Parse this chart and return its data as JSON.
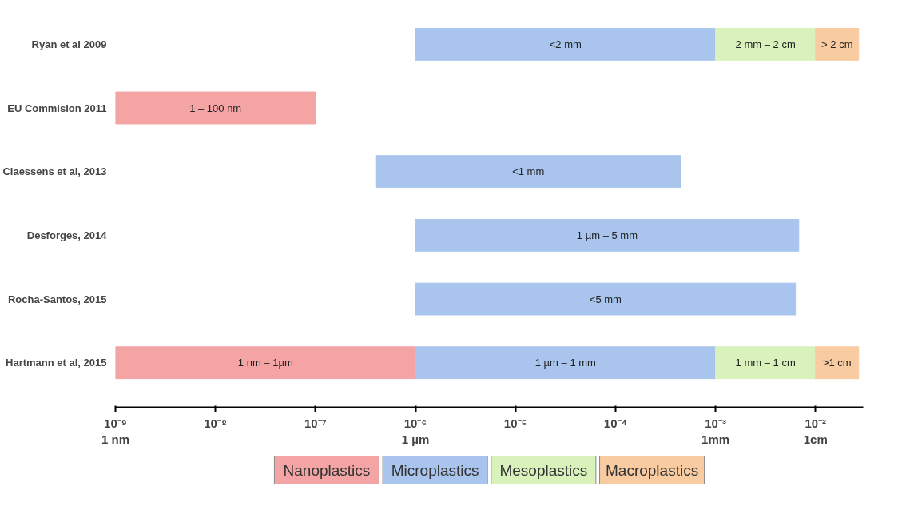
{
  "chart_data": {
    "type": "bar",
    "orientation": "horizontal",
    "log": "x",
    "legend": "bottom",
    "grid": false,
    "categories": [
      "Ryan et al 2009",
      "EU Commision 2011",
      "Claessens et al, 2013",
      "Desforges, 2014",
      "Rocha-Santos, 2015",
      "Hartmann et al, 2015"
    ],
    "xlim": [
      1e-09,
      0.03
    ],
    "xticks": [
      {
        "value": 1e-09,
        "label": "10⁻⁹\n1 nm"
      },
      {
        "value": 1e-08,
        "label": "10⁻⁸"
      },
      {
        "value": 1e-07,
        "label": "10⁻⁷"
      },
      {
        "value": 1e-06,
        "label": "10⁻⁶\n1 µm"
      },
      {
        "value": 1e-05,
        "label": "10⁻⁵"
      },
      {
        "value": 0.0001,
        "label": "10⁻⁴"
      },
      {
        "value": 0.001,
        "label": "10⁻³\n1mm"
      },
      {
        "value": 0.01,
        "label": "10⁻²\n1cm"
      }
    ],
    "series": [
      {
        "name": "Nanoplastics",
        "color": "#f4a4a4",
        "base": [
          null,
          1e-09,
          null,
          null,
          null,
          1e-09
        ],
        "values": [
          null,
          9.9e-08,
          null,
          null,
          null,
          9.99e-07
        ]
      },
      {
        "name": "Microplastics",
        "color": "#a9c5ee",
        "base": [
          1e-06,
          null,
          4e-07,
          1e-06,
          1e-06,
          1e-06
        ],
        "values": [
          0.000999,
          null,
          0.00045,
          0.0068,
          0.0063,
          0.000999
        ]
      },
      {
        "name": "Mesoplastics",
        "color": "#d9f2bb",
        "base": [
          0.001,
          null,
          null,
          null,
          null,
          0.001
        ],
        "values": [
          0.009,
          null,
          null,
          null,
          null,
          0.009
        ]
      },
      {
        "name": "Macroplastics",
        "color": "#f9cba0",
        "base": [
          0.01,
          null,
          null,
          null,
          null,
          0.01
        ],
        "values": [
          0.017,
          null,
          null,
          null,
          null,
          0.017
        ]
      }
    ],
    "annotations": [
      "<2 mm",
      "2 mm – 2 cm",
      "> 2 cm",
      "1 – 100 nm",
      "<1 mm",
      "1 µm – 5 mm",
      "<5 mm",
      "1 nm – 1µm",
      "1 µm – 1 mm",
      "1 mm – 1 cm",
      ">1 cm"
    ]
  }
}
